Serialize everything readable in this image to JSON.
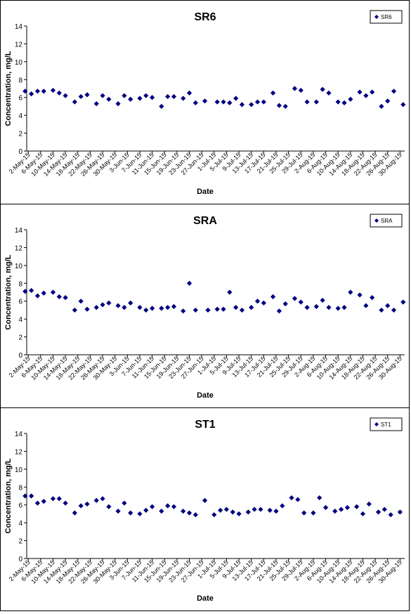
{
  "chart_data": [
    {
      "type": "scatter",
      "title": "SR6",
      "xlabel": "Date",
      "ylabel": "Concentration, mg/L",
      "ylim": [
        0,
        14
      ],
      "yticks": [
        0,
        2,
        4,
        6,
        8,
        10,
        12,
        14
      ],
      "grid": false,
      "legend": "top-right",
      "marker_color": "#000080",
      "x_tick_labels": [
        "2-May-15",
        "6-May-15",
        "10-May-15",
        "14-May-15",
        "18-May-15",
        "22-May-15",
        "26-May-15",
        "30-May-15",
        "3-Jun-15",
        "7-Jun-15",
        "11-Jun-15",
        "15-Jun-15",
        "19-Jun-15",
        "23-Jun-15",
        "27-Jun-15",
        "1-Jul-15",
        "5-Jul-15",
        "9-Jul-15",
        "13-Jul-15",
        "17-Jul-15",
        "21-Jul-15",
        "25-Jul-15",
        "29-Jul-15",
        "2-Aug-15",
        "6-Aug-15",
        "10-Aug-15",
        "14-Aug-15",
        "18-Aug-15",
        "22-Aug-15",
        "26-Aug-15",
        "30-Aug-15"
      ],
      "series": [
        {
          "name": "SR6",
          "x": [
            "1-May-15",
            "3-May-15",
            "5-May-15",
            "7-May-15",
            "10-May-15",
            "12-May-15",
            "14-May-15",
            "17-May-15",
            "19-May-15",
            "21-May-15",
            "24-May-15",
            "26-May-15",
            "28-May-15",
            "31-May-15",
            "2-Jun-15",
            "4-Jun-15",
            "7-Jun-15",
            "9-Jun-15",
            "11-Jun-15",
            "14-Jun-15",
            "16-Jun-15",
            "18-Jun-15",
            "21-Jun-15",
            "23-Jun-15",
            "25-Jun-15",
            "28-Jun-15",
            "2-Jul-15",
            "4-Jul-15",
            "6-Jul-15",
            "8-Jul-15",
            "10-Jul-15",
            "13-Jul-15",
            "15-Jul-15",
            "17-Jul-15",
            "20-Jul-15",
            "22-Jul-15",
            "24-Jul-15",
            "27-Jul-15",
            "29-Jul-15",
            "31-Jul-15",
            "3-Aug-15",
            "5-Aug-15",
            "7-Aug-15",
            "10-Aug-15",
            "12-Aug-15",
            "14-Aug-15",
            "17-Aug-15",
            "19-Aug-15",
            "21-Aug-15",
            "24-Aug-15",
            "26-Aug-15",
            "28-Aug-15",
            "31-Aug-15"
          ],
          "y": [
            6.7,
            6.4,
            6.7,
            6.7,
            6.8,
            6.5,
            6.2,
            5.5,
            6.1,
            6.3,
            5.3,
            6.2,
            5.8,
            5.3,
            6.2,
            5.8,
            5.9,
            6.2,
            6.0,
            5.0,
            6.1,
            6.1,
            5.9,
            6.5,
            5.4,
            5.6,
            5.5,
            5.5,
            5.4,
            5.9,
            5.2,
            5.2,
            5.5,
            5.5,
            6.5,
            5.1,
            5.0,
            7.0,
            6.8,
            5.5,
            5.5,
            6.9,
            6.5,
            5.5,
            5.4,
            5.8,
            6.6,
            6.2,
            6.6,
            5.0,
            5.6,
            6.7,
            5.2
          ]
        }
      ]
    },
    {
      "type": "scatter",
      "title": "SRA",
      "xlabel": "Date",
      "ylabel": "Concentration, mg/L",
      "ylim": [
        0,
        14
      ],
      "yticks": [
        0,
        2,
        4,
        6,
        8,
        10,
        12,
        14
      ],
      "grid": false,
      "legend": "top-right",
      "marker_color": "#000080",
      "x_tick_labels": [
        "2-May-15",
        "6-May-15",
        "10-May-15",
        "14-May-15",
        "18-May-15",
        "22-May-15",
        "26-May-15",
        "30-May-15",
        "3-Jun-15",
        "7-Jun-15",
        "11-Jun-15",
        "15-Jun-15",
        "19-Jun-15",
        "23-Jun-15",
        "27-Jun-15",
        "1-Jul-15",
        "5-Jul-15",
        "9-Jul-15",
        "13-Jul-15",
        "17-Jul-15",
        "21-Jul-15",
        "25-Jul-15",
        "29-Jul-15",
        "2-Aug-15",
        "6-Aug-15",
        "10-Aug-15",
        "14-Aug-15",
        "18-Aug-15",
        "22-Aug-15",
        "26-Aug-15",
        "30-Aug-15"
      ],
      "series": [
        {
          "name": "SRA",
          "x": [
            "1-May-15",
            "3-May-15",
            "5-May-15",
            "7-May-15",
            "10-May-15",
            "12-May-15",
            "14-May-15",
            "17-May-15",
            "19-May-15",
            "21-May-15",
            "24-May-15",
            "26-May-15",
            "28-May-15",
            "31-May-15",
            "2-Jun-15",
            "4-Jun-15",
            "7-Jun-15",
            "9-Jun-15",
            "11-Jun-15",
            "14-Jun-15",
            "16-Jun-15",
            "18-Jun-15",
            "21-Jun-15",
            "23-Jun-15",
            "25-Jun-15",
            "29-Jun-15",
            "2-Jul-15",
            "4-Jul-15",
            "6-Jul-15",
            "8-Jul-15",
            "10-Jul-15",
            "13-Jul-15",
            "15-Jul-15",
            "17-Jul-15",
            "20-Jul-15",
            "22-Jul-15",
            "24-Jul-15",
            "27-Jul-15",
            "29-Jul-15",
            "31-Jul-15",
            "3-Aug-15",
            "5-Aug-15",
            "7-Aug-15",
            "10-Aug-15",
            "12-Aug-15",
            "14-Aug-15",
            "17-Aug-15",
            "19-Aug-15",
            "21-Aug-15",
            "24-Aug-15",
            "26-Aug-15",
            "28-Aug-15",
            "31-Aug-15"
          ],
          "y": [
            7.1,
            7.2,
            6.6,
            6.9,
            7.0,
            6.5,
            6.4,
            5.0,
            6.0,
            5.1,
            5.3,
            5.6,
            5.8,
            5.5,
            5.3,
            5.8,
            5.3,
            5.0,
            5.2,
            5.2,
            5.3,
            5.4,
            4.9,
            8.0,
            5.0,
            5.0,
            5.1,
            5.1,
            7.0,
            5.3,
            5.0,
            5.3,
            6.0,
            5.8,
            6.5,
            4.9,
            5.7,
            6.3,
            5.9,
            5.3,
            5.4,
            6.1,
            5.3,
            5.2,
            5.3,
            7.0,
            6.7,
            5.5,
            6.4,
            5.0,
            5.5,
            5.0,
            5.9
          ]
        }
      ]
    },
    {
      "type": "scatter",
      "title": "ST1",
      "xlabel": "Date",
      "ylabel": "Concentration, mg/L",
      "ylim": [
        0,
        14
      ],
      "yticks": [
        0,
        2,
        4,
        6,
        8,
        10,
        12,
        14
      ],
      "grid": false,
      "legend": "top-right",
      "marker_color": "#000080",
      "x_tick_labels": [
        "2-May-15",
        "6-May-15",
        "10-May-15",
        "14-May-15",
        "18-May-15",
        "22-May-15",
        "26-May-15",
        "30-May-15",
        "3-Jun-15",
        "7-Jun-15",
        "11-Jun-15",
        "15-Jun-15",
        "19-Jun-15",
        "23-Jun-15",
        "27-Jun-15",
        "1-Jul-15",
        "5-Jul-15",
        "9-Jul-15",
        "13-Jul-15",
        "17-Jul-15",
        "21-Jul-15",
        "25-Jul-15",
        "29-Jul-15",
        "2-Aug-15",
        "6-Aug-15",
        "10-Aug-15",
        "14-Aug-15",
        "18-Aug-15",
        "22-Aug-15",
        "26-Aug-15",
        "30-Aug-15"
      ],
      "series": [
        {
          "name": "ST1",
          "x": [
            "1-May-15",
            "3-May-15",
            "5-May-15",
            "7-May-15",
            "10-May-15",
            "12-May-15",
            "14-May-15",
            "17-May-15",
            "19-May-15",
            "21-May-15",
            "24-May-15",
            "26-May-15",
            "28-May-15",
            "31-May-15",
            "2-Jun-15",
            "4-Jun-15",
            "7-Jun-15",
            "9-Jun-15",
            "11-Jun-15",
            "14-Jun-15",
            "16-Jun-15",
            "18-Jun-15",
            "21-Jun-15",
            "23-Jun-15",
            "25-Jun-15",
            "28-Jun-15",
            "1-Jul-15",
            "3-Jul-15",
            "5-Jul-15",
            "7-Jul-15",
            "9-Jul-15",
            "12-Jul-15",
            "14-Jul-15",
            "16-Jul-15",
            "19-Jul-15",
            "21-Jul-15",
            "23-Jul-15",
            "26-Jul-15",
            "28-Jul-15",
            "30-Jul-15",
            "2-Aug-15",
            "4-Aug-15",
            "6-Aug-15",
            "9-Aug-15",
            "11-Aug-15",
            "13-Aug-15",
            "16-Aug-15",
            "18-Aug-15",
            "20-Aug-15",
            "23-Aug-15",
            "25-Aug-15",
            "27-Aug-15",
            "30-Aug-15"
          ],
          "y": [
            7.0,
            7.0,
            6.2,
            6.4,
            6.7,
            6.7,
            6.2,
            5.1,
            5.9,
            6.1,
            6.5,
            6.7,
            5.8,
            5.3,
            6.2,
            5.1,
            5.0,
            5.4,
            5.8,
            5.3,
            5.9,
            5.8,
            5.3,
            5.1,
            4.9,
            6.5,
            4.9,
            5.4,
            5.5,
            5.2,
            5.0,
            5.2,
            5.5,
            5.5,
            5.4,
            5.3,
            5.9,
            6.8,
            6.6,
            5.1,
            5.1,
            6.8,
            5.7,
            5.3,
            5.5,
            5.7,
            5.8,
            5.0,
            6.1,
            5.2,
            5.5,
            4.9,
            5.2
          ]
        }
      ]
    }
  ]
}
